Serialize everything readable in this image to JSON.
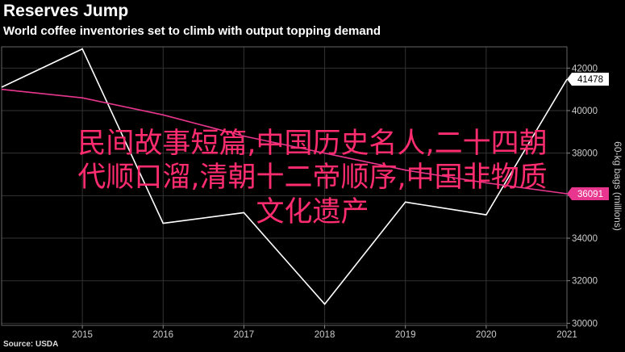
{
  "header": {
    "title": "Reserves Jump",
    "subtitle": "World coffee inventories set to climb with output topping demand"
  },
  "footer": {
    "source": "Source: USDA"
  },
  "overlay": {
    "line1": "民间故事短篇,中国历史名人,二十四朝",
    "line2": "代顺口溜,清朝十二帝顺序,中国非物质",
    "line3": "文化遗产",
    "color": "#ff2d6f"
  },
  "chart_data": {
    "type": "line",
    "title": "Reserves Jump",
    "subtitle": "World coffee inventories set to climb with output topping demand",
    "xlabel": "",
    "ylabel": "60-kg bags (millions)",
    "x_ticks": [
      "2015",
      "2016",
      "2017",
      "2018",
      "2019",
      "2020",
      "2021"
    ],
    "y_ticks": [
      "30000",
      "32000",
      "34000",
      "36000",
      "38000",
      "40000",
      "42000"
    ],
    "ylim": [
      29900,
      43000
    ],
    "xlim": [
      2014,
      2021
    ],
    "series": [
      {
        "color": "#ffffff",
        "x": [
          2014,
          2015,
          2016,
          2017,
          2018,
          2019,
          2020,
          2021
        ],
        "values": [
          41100,
          42900,
          34700,
          35200,
          30900,
          35700,
          35100,
          41478
        ],
        "end_label": "41478"
      },
      {
        "color": "#e8368f",
        "x": [
          2014,
          2015,
          2016,
          2017,
          2018,
          2019,
          2020,
          2021
        ],
        "values": [
          41000,
          40600,
          39800,
          38800,
          38000,
          37200,
          36600,
          36091
        ],
        "end_label": "36091"
      }
    ],
    "grid": true,
    "legend": "none"
  }
}
